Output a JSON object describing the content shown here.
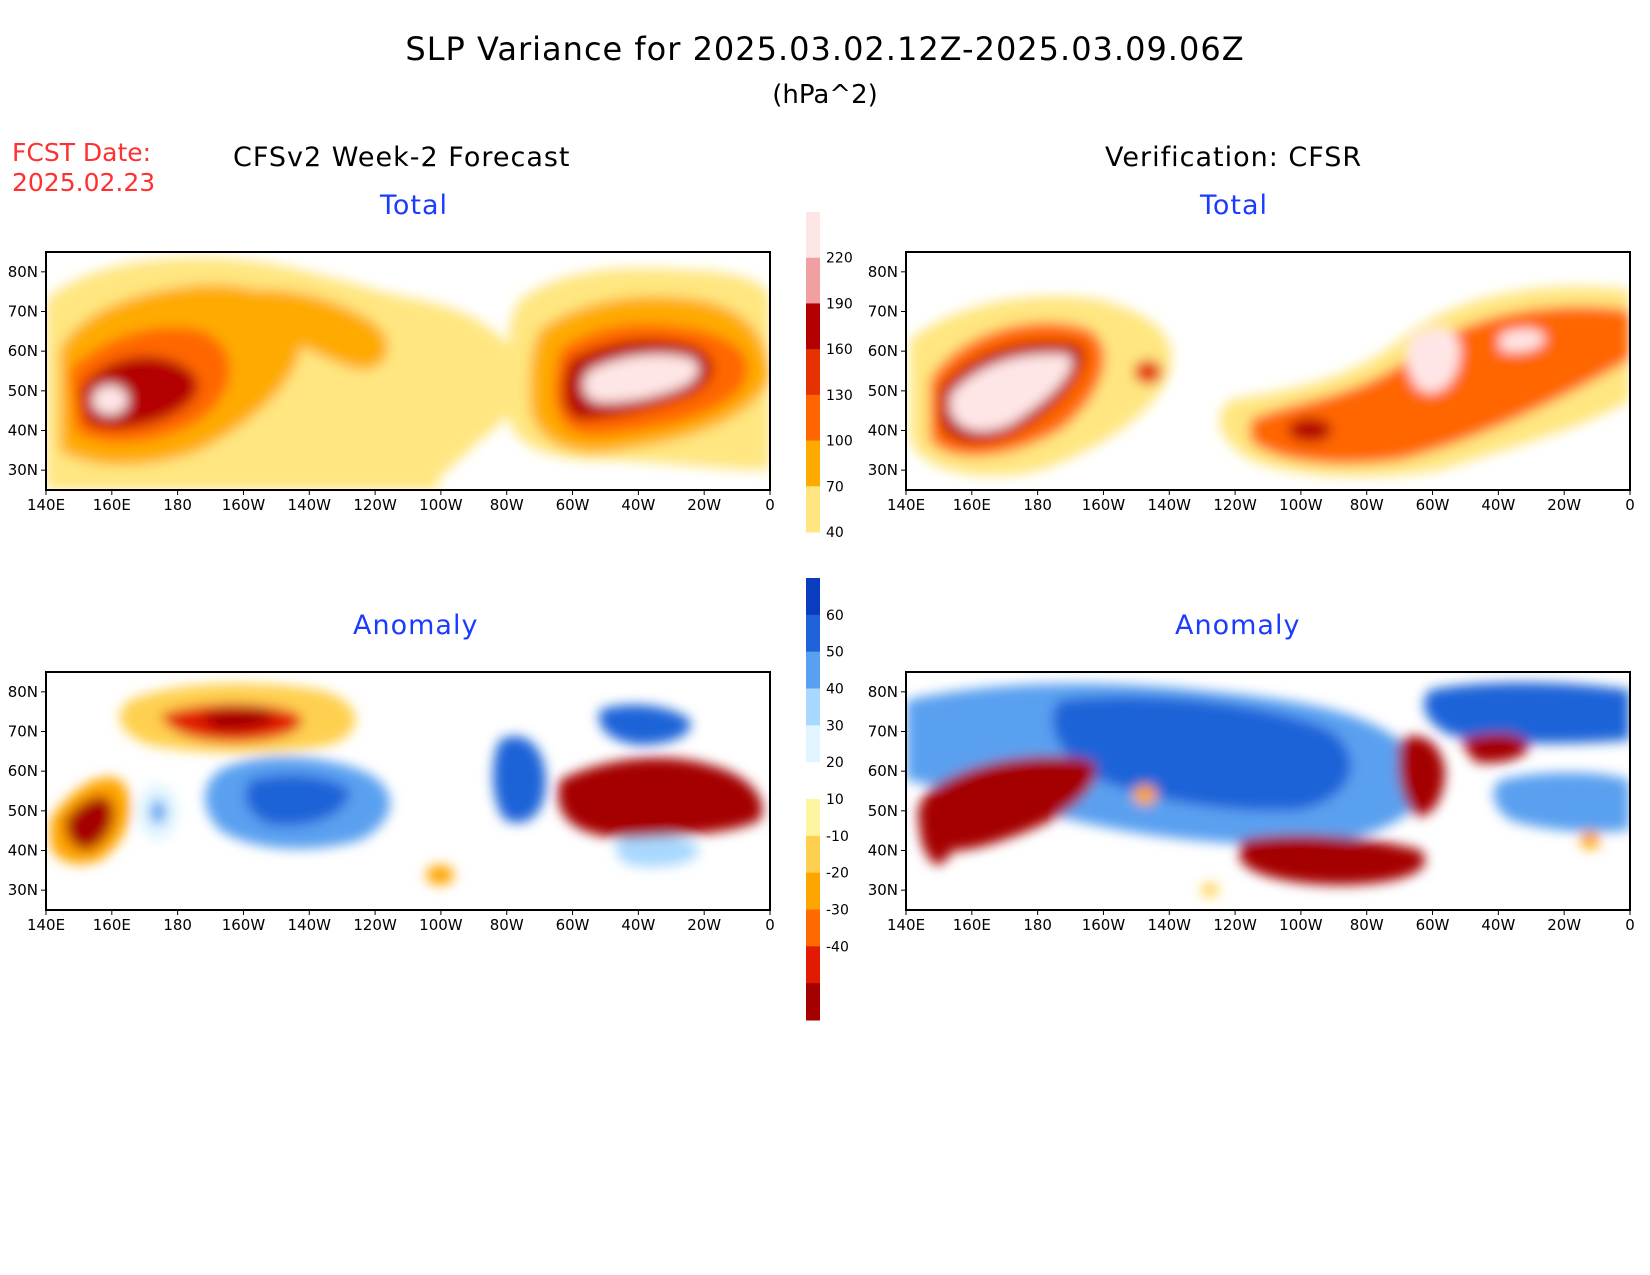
{
  "header": {
    "title": "SLP Variance for 2025.03.02.12Z-2025.03.09.06Z",
    "units": "(hPa^2)",
    "fcst_date_label": "FCST Date:",
    "fcst_date_value": "2025.02.23"
  },
  "columns": {
    "left_title": "CFSv2 Week-2 Forecast",
    "right_title": "Verification: CFSR"
  },
  "panels": {
    "total_label": "Total",
    "anomaly_label": "Anomaly"
  },
  "axes": {
    "lon_ticks": [
      "140E",
      "160E",
      "180",
      "160W",
      "140W",
      "120W",
      "100W",
      "80W",
      "60W",
      "40W",
      "20W",
      "0"
    ],
    "lat_ticks": [
      "80N",
      "70N",
      "60N",
      "50N",
      "40N",
      "30N"
    ],
    "lon_range_deg": [
      140,
      360
    ],
    "lat_range_deg": [
      25,
      85
    ]
  },
  "colorbars": {
    "total": {
      "levels": [
        "40",
        "70",
        "100",
        "130",
        "160",
        "190",
        "220"
      ],
      "colors": [
        "#ffe680",
        "#ffaa00",
        "#ff6600",
        "#e63200",
        "#b40000",
        "#f0a0a0",
        "#ffe6e6"
      ]
    },
    "anomaly": {
      "levels": [
        "60",
        "50",
        "40",
        "30",
        "20",
        "10",
        "-10",
        "-20",
        "-30",
        "-40"
      ],
      "colors": [
        "#a50000",
        "#e21a00",
        "#ff6a00",
        "#ffa500",
        "#ffd050",
        "#fff5a0",
        "#ffffff",
        "#e0f5ff",
        "#a8d8ff",
        "#5aa0f0",
        "#1e64d8",
        "#0a3cc0"
      ]
    }
  }
}
